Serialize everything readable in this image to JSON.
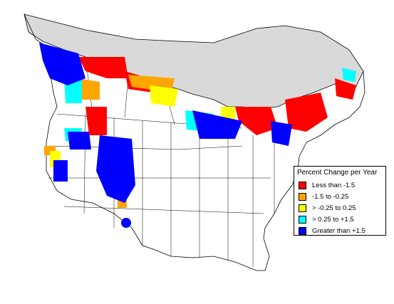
{
  "map": {
    "outside_color": "#d9d9d9",
    "boundary_color": "#000000"
  },
  "legend": {
    "title": "Percent Change per Year",
    "items": [
      {
        "label": "Less than -1.5",
        "color": "#ff0000"
      },
      {
        "label": "-1.5 to -0.25",
        "color": "#ffa500"
      },
      {
        "label": "> -0.25 to 0.25",
        "color": "#ffff00"
      },
      {
        "label": "> 0.25 to +1.5",
        "color": "#00ffff"
      },
      {
        "label": "Greater than +1.5",
        "color": "#0000ff"
      }
    ]
  }
}
